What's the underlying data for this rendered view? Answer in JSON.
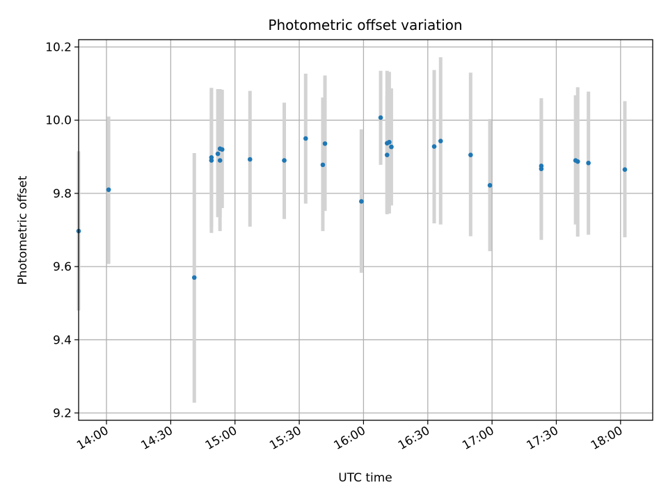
{
  "chart_data": {
    "type": "scatter",
    "title": "Photometric offset variation",
    "xlabel": "UTC time",
    "ylabel": "Photometric offset",
    "x_axis_type": "time",
    "xlim": [
      "13:47",
      "18:15"
    ],
    "ylim": [
      9.18,
      10.22
    ],
    "grid": true,
    "x_ticks": [
      "14:00",
      "14:30",
      "15:00",
      "15:30",
      "16:00",
      "16:30",
      "17:00",
      "17:30",
      "18:00"
    ],
    "y_ticks": [
      "9.2",
      "9.4",
      "9.6",
      "9.8",
      "10.0",
      "10.2"
    ],
    "colors": {
      "point": "#1f77b4",
      "error_bar": "#d3d3d3",
      "grid": "#b0b0b0"
    },
    "series": [
      {
        "points": [
          {
            "x": "13:47",
            "y": 9.697,
            "ymin": 9.48,
            "ymax": 9.915
          },
          {
            "x": "14:01",
            "y": 9.81,
            "ymin": 9.607,
            "ymax": 10.01
          },
          {
            "x": "14:41",
            "y": 9.57,
            "ymin": 9.228,
            "ymax": 9.91
          },
          {
            "x": "14:49",
            "y": 9.89,
            "ymin": 9.692,
            "ymax": 10.088
          },
          {
            "x": "14:49",
            "y": 9.898,
            "ymin": 9.708,
            "ymax": 10.088
          },
          {
            "x": "14:52",
            "y": 9.908,
            "ymin": 9.735,
            "ymax": 10.085
          },
          {
            "x": "14:53",
            "y": 9.922,
            "ymin": 9.735,
            "ymax": 10.085
          },
          {
            "x": "14:53",
            "y": 9.89,
            "ymin": 9.697,
            "ymax": 10.085
          },
          {
            "x": "14:54",
            "y": 9.92,
            "ymin": 9.76,
            "ymax": 10.083
          },
          {
            "x": "15:07",
            "y": 9.893,
            "ymin": 9.709,
            "ymax": 10.08
          },
          {
            "x": "15:23",
            "y": 9.89,
            "ymin": 9.73,
            "ymax": 10.048
          },
          {
            "x": "15:33",
            "y": 9.95,
            "ymin": 9.772,
            "ymax": 10.127
          },
          {
            "x": "15:41",
            "y": 9.878,
            "ymin": 9.697,
            "ymax": 10.062
          },
          {
            "x": "15:42",
            "y": 9.936,
            "ymin": 9.752,
            "ymax": 10.122
          },
          {
            "x": "15:59",
            "y": 9.778,
            "ymin": 9.583,
            "ymax": 9.975
          },
          {
            "x": "16:08",
            "y": 10.007,
            "ymin": 9.878,
            "ymax": 10.135
          },
          {
            "x": "16:11",
            "y": 9.905,
            "ymin": 9.745,
            "ymax": 10.065
          },
          {
            "x": "16:11",
            "y": 9.937,
            "ymin": 9.743,
            "ymax": 10.135
          },
          {
            "x": "16:12",
            "y": 9.94,
            "ymin": 9.745,
            "ymax": 10.132
          },
          {
            "x": "16:13",
            "y": 9.927,
            "ymin": 9.767,
            "ymax": 10.087
          },
          {
            "x": "16:33",
            "y": 9.928,
            "ymin": 9.718,
            "ymax": 10.137
          },
          {
            "x": "16:36",
            "y": 9.943,
            "ymin": 9.715,
            "ymax": 10.172
          },
          {
            "x": "16:50",
            "y": 9.905,
            "ymin": 9.683,
            "ymax": 10.13
          },
          {
            "x": "16:59",
            "y": 9.822,
            "ymin": 9.642,
            "ymax": 10.003
          },
          {
            "x": "17:23",
            "y": 9.867,
            "ymin": 9.673,
            "ymax": 10.06
          },
          {
            "x": "17:23",
            "y": 9.875,
            "ymin": 9.697,
            "ymax": 10.053
          },
          {
            "x": "17:39",
            "y": 9.89,
            "ymin": 9.715,
            "ymax": 10.068
          },
          {
            "x": "17:40",
            "y": 9.887,
            "ymin": 9.682,
            "ymax": 10.09
          },
          {
            "x": "17:45",
            "y": 9.883,
            "ymin": 9.687,
            "ymax": 10.078
          },
          {
            "x": "18:02",
            "y": 9.865,
            "ymin": 9.68,
            "ymax": 10.052
          }
        ]
      }
    ]
  }
}
